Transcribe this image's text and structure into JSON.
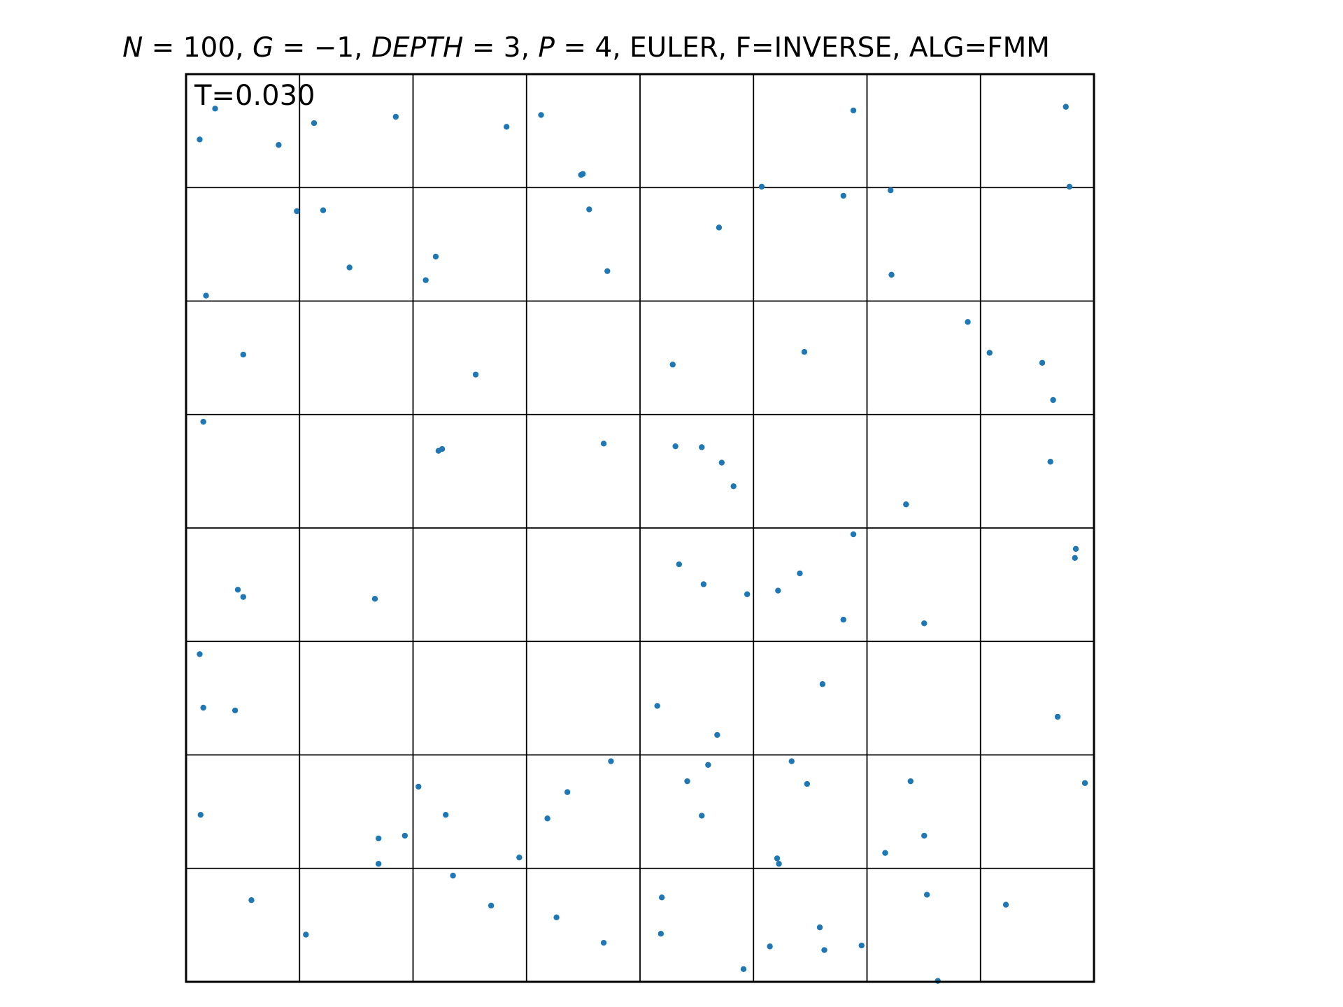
{
  "chart_data": {
    "type": "scatter",
    "title": {
      "prefix_italic": "N",
      "n_part": " = 100, ",
      "g_italic": "G",
      "g_part": " = −1, ",
      "depth_italic": "DEPTH",
      "depth_part": " = 3, ",
      "p_italic": "P",
      "rest": " = 4, EULER, F=INVERSE, ALG=FMM"
    },
    "annotation": "T=0.030",
    "xlim": [
      0,
      1
    ],
    "ylim": [
      0,
      1
    ],
    "grid_divisions": 8,
    "marker_color": "#1f77b4",
    "frame_color": "#000000",
    "points": [
      [
        0.032,
        0.962
      ],
      [
        0.015,
        0.928
      ],
      [
        0.102,
        0.922
      ],
      [
        0.141,
        0.946
      ],
      [
        0.231,
        0.953
      ],
      [
        0.353,
        0.942
      ],
      [
        0.391,
        0.955
      ],
      [
        0.437,
        0.89
      ],
      [
        0.435,
        0.889
      ],
      [
        0.735,
        0.96
      ],
      [
        0.969,
        0.964
      ],
      [
        0.151,
        0.85
      ],
      [
        0.122,
        0.849
      ],
      [
        0.022,
        0.756
      ],
      [
        0.18,
        0.787
      ],
      [
        0.275,
        0.799
      ],
      [
        0.264,
        0.773
      ],
      [
        0.444,
        0.851
      ],
      [
        0.464,
        0.783
      ],
      [
        0.587,
        0.831
      ],
      [
        0.634,
        0.876
      ],
      [
        0.724,
        0.866
      ],
      [
        0.776,
        0.872
      ],
      [
        0.777,
        0.779
      ],
      [
        0.973,
        0.876
      ],
      [
        0.063,
        0.691
      ],
      [
        0.319,
        0.669
      ],
      [
        0.536,
        0.68
      ],
      [
        0.681,
        0.694
      ],
      [
        0.861,
        0.727
      ],
      [
        0.885,
        0.693
      ],
      [
        0.943,
        0.682
      ],
      [
        0.955,
        0.641
      ],
      [
        0.019,
        0.617
      ],
      [
        0.278,
        0.585
      ],
      [
        0.282,
        0.587
      ],
      [
        0.46,
        0.593
      ],
      [
        0.539,
        0.59
      ],
      [
        0.568,
        0.589
      ],
      [
        0.59,
        0.572
      ],
      [
        0.603,
        0.546
      ],
      [
        0.793,
        0.526
      ],
      [
        0.952,
        0.573
      ],
      [
        0.057,
        0.432
      ],
      [
        0.063,
        0.424
      ],
      [
        0.208,
        0.422
      ],
      [
        0.543,
        0.46
      ],
      [
        0.57,
        0.438
      ],
      [
        0.618,
        0.427
      ],
      [
        0.652,
        0.431
      ],
      [
        0.676,
        0.45
      ],
      [
        0.735,
        0.493
      ],
      [
        0.724,
        0.399
      ],
      [
        0.813,
        0.395
      ],
      [
        0.98,
        0.477
      ],
      [
        0.979,
        0.467
      ],
      [
        0.015,
        0.361
      ],
      [
        0.019,
        0.302
      ],
      [
        0.054,
        0.299
      ],
      [
        0.519,
        0.304
      ],
      [
        0.585,
        0.272
      ],
      [
        0.701,
        0.328
      ],
      [
        0.96,
        0.292
      ],
      [
        0.016,
        0.184
      ],
      [
        0.256,
        0.215
      ],
      [
        0.286,
        0.184
      ],
      [
        0.212,
        0.158
      ],
      [
        0.241,
        0.161
      ],
      [
        0.212,
        0.13
      ],
      [
        0.398,
        0.18
      ],
      [
        0.42,
        0.209
      ],
      [
        0.468,
        0.243
      ],
      [
        0.552,
        0.221
      ],
      [
        0.575,
        0.239
      ],
      [
        0.568,
        0.183
      ],
      [
        0.667,
        0.243
      ],
      [
        0.684,
        0.218
      ],
      [
        0.798,
        0.221
      ],
      [
        0.813,
        0.161
      ],
      [
        0.77,
        0.142
      ],
      [
        0.99,
        0.219
      ],
      [
        0.367,
        0.137
      ],
      [
        0.651,
        0.136
      ],
      [
        0.653,
        0.13
      ],
      [
        0.072,
        0.09
      ],
      [
        0.132,
        0.052
      ],
      [
        0.294,
        0.117
      ],
      [
        0.336,
        0.084
      ],
      [
        0.408,
        0.071
      ],
      [
        0.46,
        0.043
      ],
      [
        0.524,
        0.093
      ],
      [
        0.523,
        0.053
      ],
      [
        0.614,
        0.014
      ],
      [
        0.643,
        0.039
      ],
      [
        0.698,
        0.06
      ],
      [
        0.703,
        0.035
      ],
      [
        0.744,
        0.04
      ],
      [
        0.816,
        0.096
      ],
      [
        0.903,
        0.085
      ],
      [
        0.828,
        0.001
      ]
    ]
  }
}
